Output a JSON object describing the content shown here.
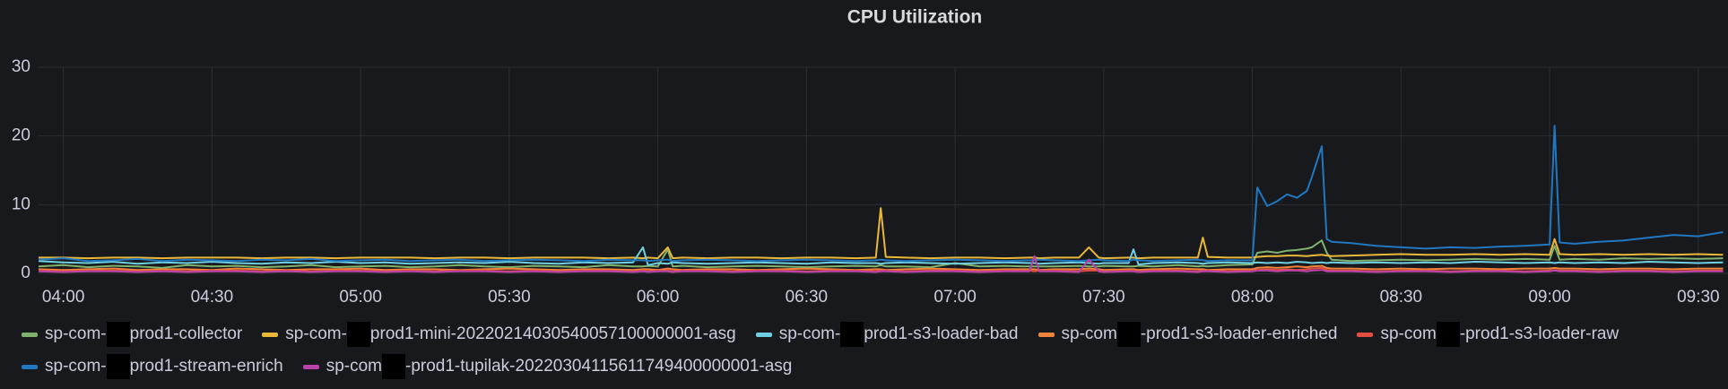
{
  "chart_data": {
    "type": "line",
    "title": "CPU Utilization",
    "x": [
      "03:55",
      "04:00",
      "04:05",
      "04:10",
      "04:15",
      "04:20",
      "04:25",
      "04:30",
      "04:35",
      "04:40",
      "04:45",
      "04:50",
      "04:55",
      "05:00",
      "05:05",
      "05:10",
      "05:15",
      "05:20",
      "05:25",
      "05:30",
      "05:35",
      "05:40",
      "05:45",
      "05:50",
      "05:55",
      "05:57",
      "05:58",
      "06:00",
      "06:02",
      "06:03",
      "06:05",
      "06:10",
      "06:15",
      "06:20",
      "06:25",
      "06:30",
      "06:35",
      "06:40",
      "06:44",
      "06:45",
      "06:46",
      "06:50",
      "06:55",
      "07:00",
      "07:05",
      "07:10",
      "07:15",
      "07:16",
      "07:17",
      "07:20",
      "07:25",
      "07:27",
      "07:29",
      "07:30",
      "07:35",
      "07:36",
      "07:37",
      "07:40",
      "07:45",
      "07:49",
      "07:50",
      "07:51",
      "07:55",
      "08:00",
      "08:01",
      "08:03",
      "08:05",
      "08:07",
      "08:09",
      "08:11",
      "08:12",
      "08:14",
      "08:15",
      "08:16",
      "08:20",
      "08:25",
      "08:30",
      "08:35",
      "08:40",
      "08:45",
      "08:50",
      "08:55",
      "09:00",
      "09:01",
      "09:02",
      "09:05",
      "09:10",
      "09:15",
      "09:20",
      "09:25",
      "09:30",
      "09:35"
    ],
    "series": [
      {
        "name": [
          "sp-com-",
          "prod1-collector"
        ],
        "color": "#7eb26d",
        "values": [
          1.0,
          1.2,
          0.9,
          1.1,
          1.0,
          0.8,
          1.2,
          1.0,
          1.1,
          0.9,
          1.0,
          1.2,
          0.9,
          1.0,
          1.1,
          0.9,
          1.0,
          1.2,
          1.0,
          0.9,
          1.1,
          1.0,
          0.9,
          1.2,
          1.0,
          1.0,
          1.1,
          1.0,
          3.5,
          1.0,
          1.1,
          0.9,
          1.0,
          1.1,
          1.0,
          0.9,
          1.0,
          1.1,
          1.0,
          1.2,
          1.0,
          1.0,
          0.9,
          1.5,
          1.0,
          1.1,
          1.0,
          1.0,
          1.0,
          1.0,
          1.1,
          1.0,
          1.0,
          1.1,
          1.0,
          1.0,
          1.1,
          1.0,
          1.2,
          1.0,
          1.1,
          1.0,
          1.2,
          1.3,
          3.0,
          3.2,
          3.0,
          3.3,
          3.4,
          3.6,
          3.8,
          4.8,
          3.0,
          2.0,
          1.8,
          1.9,
          2.0,
          1.9,
          2.0,
          2.1,
          2.0,
          2.1,
          2.0,
          4.0,
          2.0,
          2.1,
          2.0,
          2.2,
          2.1,
          2.2,
          2.1,
          2.2
        ]
      },
      {
        "name": [
          "sp-com-",
          "prod1-mini-20220214030540057100000001-asg"
        ],
        "color": "#eab839",
        "values": [
          2.3,
          2.3,
          2.2,
          2.3,
          2.3,
          2.2,
          2.3,
          2.3,
          2.3,
          2.2,
          2.3,
          2.3,
          2.2,
          2.3,
          2.3,
          2.3,
          2.2,
          2.3,
          2.3,
          2.2,
          2.3,
          2.3,
          2.3,
          2.2,
          2.3,
          2.2,
          2.3,
          2.2,
          3.8,
          2.2,
          2.3,
          2.2,
          2.3,
          2.3,
          2.2,
          2.3,
          2.3,
          2.2,
          2.3,
          9.5,
          2.4,
          2.3,
          2.2,
          2.3,
          2.3,
          2.2,
          2.3,
          2.3,
          2.2,
          2.3,
          2.3,
          3.8,
          2.3,
          2.2,
          2.3,
          2.3,
          2.2,
          2.3,
          2.3,
          2.3,
          5.2,
          2.4,
          2.3,
          2.3,
          2.4,
          2.5,
          2.5,
          2.6,
          2.6,
          2.5,
          2.6,
          2.7,
          2.6,
          2.5,
          2.6,
          2.7,
          2.8,
          2.7,
          2.7,
          2.8,
          2.7,
          2.8,
          2.7,
          5.0,
          2.8,
          2.7,
          2.8,
          2.7,
          2.8,
          2.7,
          2.8,
          2.7
        ]
      },
      {
        "name": [
          "sp-com-",
          "prod1-s3-loader-bad"
        ],
        "color": "#6ed0e0",
        "values": [
          1.8,
          1.6,
          1.5,
          1.7,
          1.4,
          1.6,
          1.5,
          1.7,
          1.5,
          1.4,
          1.6,
          1.5,
          1.7,
          1.5,
          1.6,
          1.4,
          1.5,
          1.6,
          1.5,
          1.7,
          1.5,
          1.4,
          1.6,
          1.5,
          1.6,
          3.8,
          1.2,
          1.5,
          1.4,
          1.6,
          1.5,
          1.4,
          1.5,
          1.6,
          1.5,
          1.4,
          1.6,
          1.5,
          1.5,
          1.4,
          1.5,
          1.6,
          1.5,
          1.4,
          1.5,
          1.6,
          1.5,
          1.5,
          1.4,
          1.5,
          1.6,
          1.5,
          1.4,
          1.5,
          1.5,
          3.5,
          1.3,
          1.5,
          1.6,
          1.5,
          1.4,
          1.5,
          1.6,
          1.5,
          1.6,
          1.5,
          1.6,
          1.5,
          1.7,
          1.6,
          1.5,
          1.6,
          1.5,
          1.6,
          1.5,
          1.6,
          1.5,
          1.6,
          1.5,
          1.7,
          1.6,
          1.5,
          1.6,
          1.5,
          1.6,
          1.5,
          1.6,
          1.5,
          1.7,
          1.6,
          1.5,
          1.6
        ]
      },
      {
        "name": [
          "sp-com",
          "-prod1-s3-loader-enriched"
        ],
        "color": "#ef843c",
        "values": [
          0.6,
          0.5,
          0.6,
          0.7,
          0.5,
          0.6,
          0.6,
          0.5,
          0.7,
          0.6,
          0.5,
          0.6,
          0.6,
          0.7,
          0.5,
          0.6,
          0.6,
          0.5,
          0.6,
          0.7,
          0.6,
          0.5,
          0.6,
          0.6,
          0.5,
          0.6,
          0.6,
          0.5,
          0.7,
          0.6,
          0.5,
          0.6,
          0.6,
          0.5,
          0.6,
          0.7,
          0.6,
          0.5,
          0.6,
          0.6,
          0.5,
          0.6,
          0.7,
          0.6,
          0.5,
          0.6,
          0.6,
          0.6,
          0.5,
          0.6,
          0.6,
          0.7,
          0.6,
          0.5,
          0.6,
          0.6,
          0.5,
          0.6,
          0.7,
          0.6,
          0.6,
          0.5,
          0.6,
          0.6,
          0.8,
          0.9,
          0.8,
          0.9,
          1.0,
          0.9,
          1.0,
          1.1,
          0.8,
          0.7,
          0.7,
          0.6,
          0.7,
          0.6,
          0.7,
          0.7,
          0.6,
          0.7,
          0.7,
          0.8,
          0.7,
          0.7,
          0.6,
          0.7,
          0.7,
          0.6,
          0.7,
          0.7
        ]
      },
      {
        "name": [
          "sp-com",
          "-prod1-s3-loader-raw"
        ],
        "color": "#e24d42",
        "values": [
          0.4,
          0.3,
          0.4,
          0.4,
          0.3,
          0.4,
          0.3,
          0.4,
          0.4,
          0.3,
          0.4,
          0.3,
          0.4,
          0.4,
          0.3,
          0.4,
          0.3,
          0.4,
          0.4,
          0.3,
          0.4,
          0.3,
          0.4,
          0.4,
          0.3,
          0.4,
          0.3,
          0.4,
          0.4,
          0.3,
          0.4,
          0.4,
          0.3,
          0.4,
          0.4,
          0.3,
          0.4,
          0.4,
          0.3,
          0.4,
          0.4,
          0.3,
          0.4,
          0.4,
          0.3,
          0.4,
          0.4,
          0.3,
          0.4,
          0.4,
          0.3,
          0.4,
          0.4,
          0.3,
          0.4,
          0.4,
          0.3,
          0.4,
          0.4,
          0.3,
          0.4,
          0.4,
          0.3,
          0.4,
          0.5,
          0.6,
          0.5,
          0.6,
          0.5,
          0.6,
          0.7,
          0.8,
          0.5,
          0.4,
          0.4,
          0.3,
          0.4,
          0.4,
          0.3,
          0.4,
          0.4,
          0.3,
          0.4,
          0.5,
          0.4,
          0.4,
          0.3,
          0.4,
          0.4,
          0.3,
          0.4,
          0.4
        ]
      },
      {
        "name": [
          "sp-com-",
          "prod1-stream-enrich"
        ],
        "color": "#1f78c1",
        "values": [
          2.0,
          2.2,
          1.8,
          1.9,
          2.1,
          1.8,
          2.0,
          1.9,
          1.8,
          2.0,
          1.9,
          2.1,
          1.8,
          1.9,
          2.0,
          1.8,
          1.9,
          2.0,
          1.8,
          1.9,
          2.0,
          1.9,
          1.8,
          2.0,
          1.9,
          1.9,
          1.8,
          1.9,
          2.0,
          1.8,
          1.9,
          2.0,
          1.9,
          1.8,
          1.9,
          2.0,
          1.9,
          1.8,
          1.9,
          2.0,
          1.9,
          1.8,
          1.9,
          2.0,
          1.9,
          1.8,
          1.9,
          1.9,
          2.0,
          1.9,
          1.8,
          1.9,
          2.0,
          1.9,
          1.8,
          2.0,
          1.9,
          1.8,
          1.9,
          2.0,
          1.9,
          1.8,
          1.9,
          1.9,
          12.5,
          9.8,
          10.5,
          11.5,
          11.0,
          12.0,
          14.0,
          18.5,
          5.0,
          4.6,
          4.4,
          4.0,
          3.8,
          3.6,
          3.8,
          3.7,
          3.9,
          4.0,
          4.2,
          21.5,
          4.5,
          4.3,
          4.6,
          4.8,
          5.2,
          5.6,
          5.4,
          6.0
        ]
      },
      {
        "name": [
          "sp-com",
          "-prod1-tupilak-20220304115611749400000001-asg"
        ],
        "color": "#ba43a9",
        "values": [
          0.3,
          0.2,
          0.3,
          0.3,
          0.2,
          0.3,
          0.2,
          0.3,
          0.3,
          0.2,
          0.3,
          0.2,
          0.3,
          0.3,
          0.2,
          0.3,
          0.2,
          0.3,
          0.3,
          0.2,
          0.3,
          0.2,
          0.3,
          0.3,
          0.2,
          0.3,
          0.2,
          0.3,
          0.3,
          0.2,
          0.3,
          0.3,
          0.2,
          0.3,
          0.3,
          0.2,
          0.3,
          0.3,
          0.2,
          0.3,
          0.3,
          0.2,
          0.3,
          0.3,
          0.2,
          0.3,
          0.3,
          2.5,
          0.3,
          0.3,
          0.2,
          2.0,
          0.3,
          0.2,
          0.3,
          0.3,
          0.2,
          0.3,
          0.3,
          0.2,
          0.3,
          0.3,
          0.2,
          0.3,
          0.4,
          0.4,
          0.3,
          0.4,
          0.4,
          0.3,
          0.4,
          0.5,
          0.3,
          0.3,
          0.3,
          0.2,
          0.3,
          0.3,
          0.2,
          0.3,
          0.3,
          0.2,
          0.3,
          0.4,
          0.3,
          0.3,
          0.2,
          0.3,
          0.3,
          0.2,
          0.3,
          0.3
        ]
      }
    ],
    "xlim": [
      "03:55",
      "09:36"
    ],
    "xticks": [
      "04:00",
      "04:30",
      "05:00",
      "05:30",
      "06:00",
      "06:30",
      "07:00",
      "07:30",
      "08:00",
      "08:30",
      "09:00",
      "09:30"
    ],
    "ylim": [
      0,
      30
    ],
    "yticks": [
      0,
      10,
      20,
      30
    ],
    "grid": true
  }
}
